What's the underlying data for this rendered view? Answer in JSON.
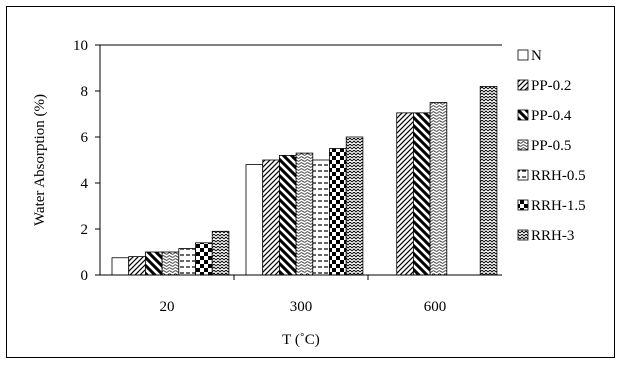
{
  "chart_data": {
    "type": "bar",
    "xlabel": "T (˚C)",
    "ylabel": "Water Absorption  (%)",
    "categories": [
      "20",
      "300",
      "600"
    ],
    "ylim": [
      0,
      10
    ],
    "yticks": [
      "0",
      "2",
      "4",
      "6",
      "8",
      "10"
    ],
    "grid": false,
    "legend_position": "right",
    "series": [
      {
        "name": "N",
        "values": [
          0.75,
          4.8,
          null
        ]
      },
      {
        "name": "PP-0.2",
        "values": [
          0.8,
          5.0,
          7.05
        ]
      },
      {
        "name": "PP-0.4",
        "values": [
          1.0,
          5.2,
          7.05
        ]
      },
      {
        "name": "PP-0.5",
        "values": [
          1.0,
          5.3,
          7.5
        ]
      },
      {
        "name": "RRH-0.5",
        "values": [
          1.15,
          5.0,
          null
        ]
      },
      {
        "name": "RRH-1.5",
        "values": [
          1.4,
          5.5,
          null
        ]
      },
      {
        "name": "RRH-3",
        "values": [
          1.9,
          6.0,
          8.2
        ]
      }
    ]
  }
}
